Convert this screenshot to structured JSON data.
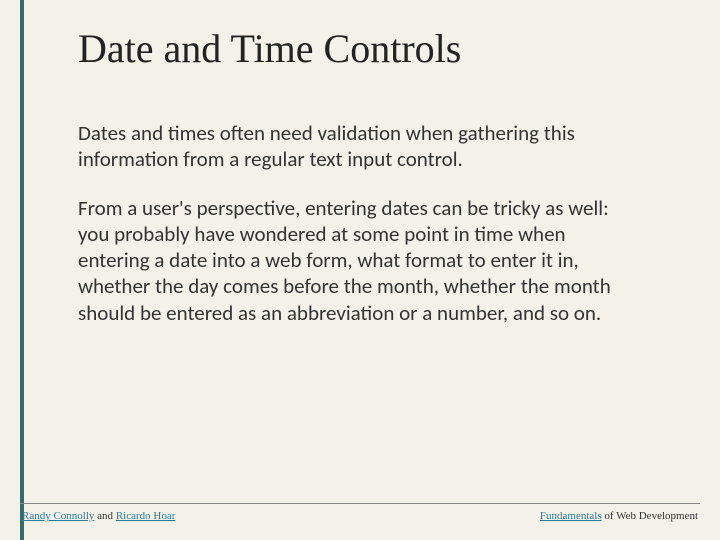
{
  "slide": {
    "title": "Date and Time Controls",
    "paragraph1": "Dates and times often need validation when gathering this information from a regular text input control.",
    "paragraph2": "From a user's perspective, entering dates can be tricky as well: you probably have wondered at some point in time when entering a date into a web form, what format to enter it in, whether the day comes before the month, whether the month should be entered as an abbreviation or a number, and so on."
  },
  "footer": {
    "author1": "Randy Connolly",
    "connector1": " and ",
    "author2": "Ricardo Hoar",
    "book_word1": "Fundamentals",
    "book_rest": " of Web Development"
  },
  "colors": {
    "background": "#f4f1ea",
    "accent": "#3a6b6b",
    "link": "#2a7a9c",
    "text": "#333333"
  }
}
